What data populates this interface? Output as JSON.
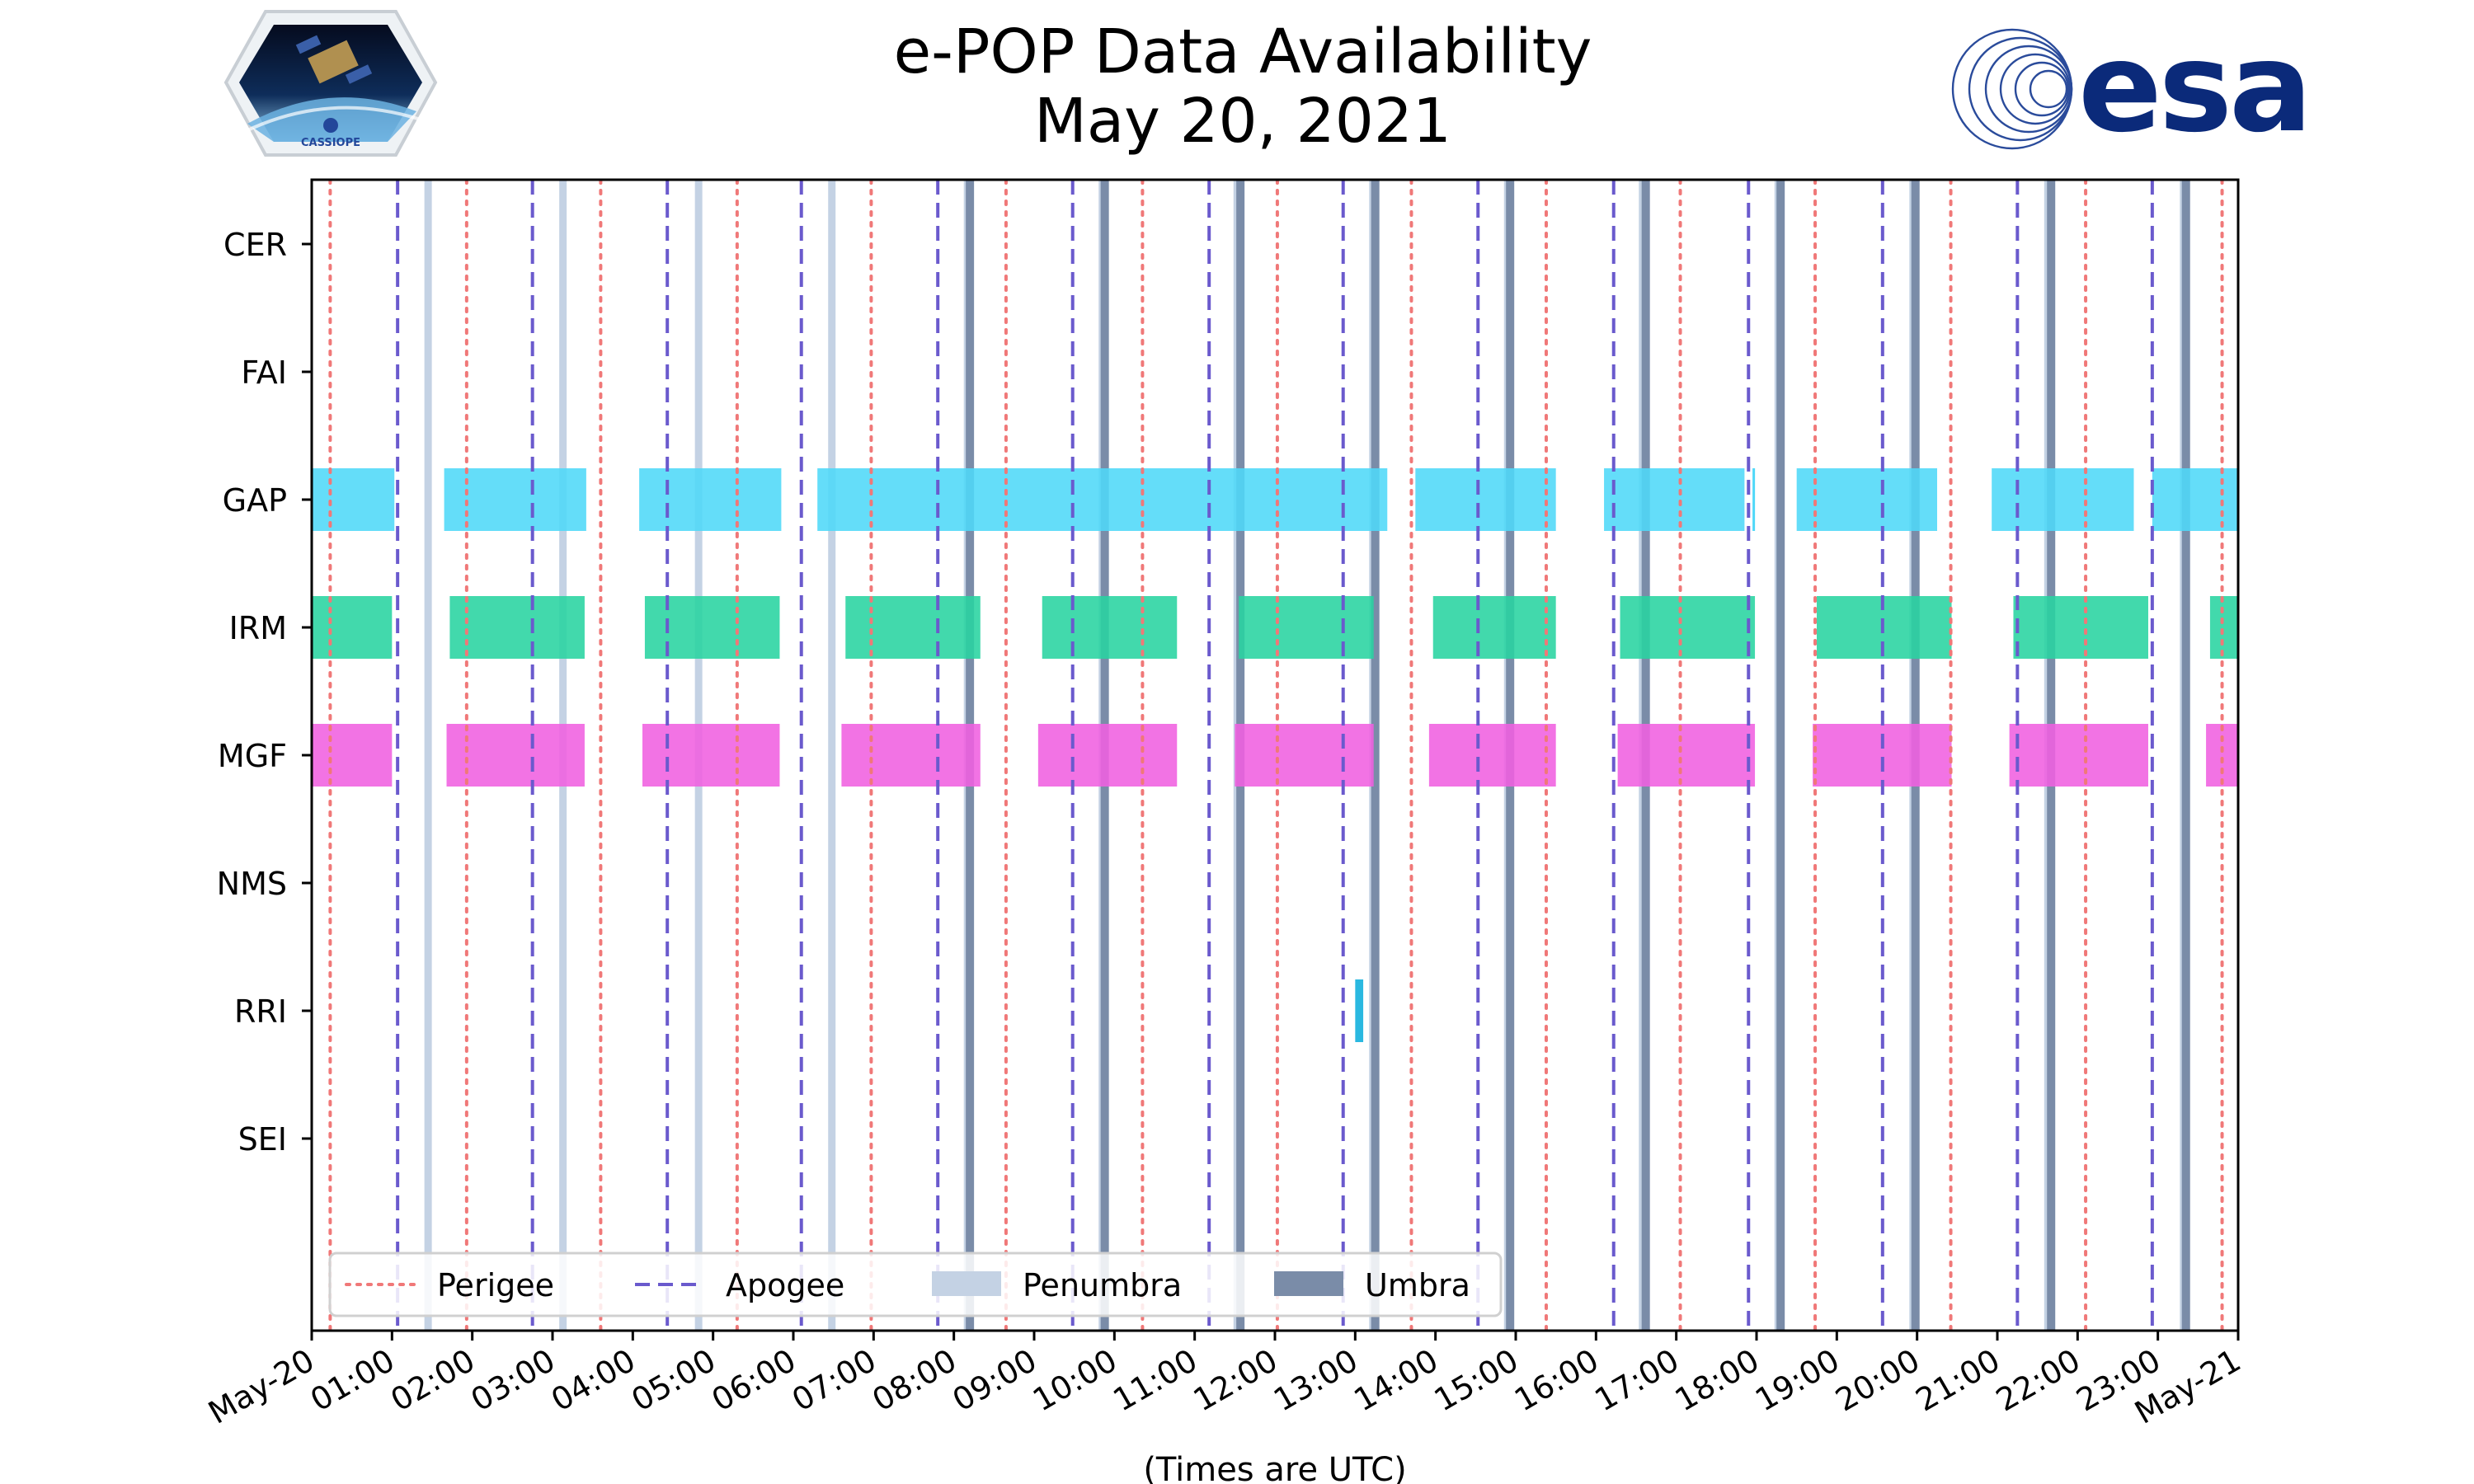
{
  "chart_data": {
    "type": "timeline",
    "title": "e-POP Data Availability",
    "subtitle": "May 20, 2021",
    "xlabel": "(Times are UTC)",
    "ylabel": "",
    "x_range_hours": [
      0,
      24
    ],
    "x_tick_labels": [
      "May-20",
      "01:00",
      "02:00",
      "03:00",
      "04:00",
      "05:00",
      "06:00",
      "07:00",
      "08:00",
      "09:00",
      "10:00",
      "11:00",
      "12:00",
      "13:00",
      "14:00",
      "15:00",
      "16:00",
      "17:00",
      "18:00",
      "19:00",
      "20:00",
      "21:00",
      "22:00",
      "23:00",
      "May-21"
    ],
    "instruments": [
      "CER",
      "FAI",
      "GAP",
      "IRM",
      "MGF",
      "NMS",
      "RRI",
      "SEI"
    ],
    "colors": {
      "GAP": "#4fd8f8",
      "IRM": "#28d4a0",
      "MGF": "#f060e0",
      "RRI": "#2ab8e0",
      "perigee": "#f07878",
      "apogee": "#6a5acd",
      "penumbra": "#c4d2e4",
      "umbra": "#7a8ca8"
    },
    "series": [
      {
        "name": "CER",
        "intervals": []
      },
      {
        "name": "FAI",
        "intervals": []
      },
      {
        "name": "GAP",
        "intervals": [
          [
            0,
            1.03
          ],
          [
            1.65,
            3.42
          ],
          [
            4.08,
            5.85
          ],
          [
            6.3,
            13.4
          ],
          [
            13.75,
            15.5
          ],
          [
            16.1,
            17.85
          ],
          [
            17.95,
            17.97
          ],
          [
            18.5,
            20.25
          ],
          [
            20.93,
            22.7
          ],
          [
            22.93,
            24
          ]
        ]
      },
      {
        "name": "IRM",
        "intervals": [
          [
            0,
            1.0
          ],
          [
            1.72,
            3.4
          ],
          [
            4.15,
            5.83
          ],
          [
            6.65,
            8.33
          ],
          [
            9.1,
            10.78
          ],
          [
            11.55,
            13.23
          ],
          [
            13.97,
            15.5
          ],
          [
            16.3,
            17.98
          ],
          [
            18.75,
            20.43
          ],
          [
            21.2,
            22.88
          ],
          [
            23.65,
            24
          ]
        ]
      },
      {
        "name": "MGF",
        "intervals": [
          [
            0,
            1.0
          ],
          [
            1.68,
            3.4
          ],
          [
            4.12,
            5.83
          ],
          [
            6.6,
            8.33
          ],
          [
            9.05,
            10.78
          ],
          [
            11.5,
            13.23
          ],
          [
            13.92,
            15.5
          ],
          [
            16.27,
            17.98
          ],
          [
            18.7,
            20.43
          ],
          [
            21.15,
            22.88
          ],
          [
            23.6,
            24
          ]
        ]
      },
      {
        "name": "NMS",
        "intervals": []
      },
      {
        "name": "RRI",
        "intervals": [
          [
            13.0,
            13.1
          ]
        ]
      },
      {
        "name": "SEI",
        "intervals": []
      }
    ],
    "perigee_hours": [
      0.23,
      1.93,
      3.6,
      5.3,
      6.97,
      8.65,
      10.35,
      12.03,
      13.7,
      15.38,
      17.05,
      18.73,
      20.42,
      22.1,
      23.8
    ],
    "apogee_hours": [
      1.07,
      2.75,
      4.43,
      6.1,
      7.8,
      9.48,
      11.18,
      12.85,
      14.53,
      16.22,
      17.9,
      19.57,
      21.25,
      22.93
    ],
    "penumbra_hours": [
      1.45,
      3.13,
      4.82,
      6.48,
      8.17,
      9.85,
      11.53,
      13.22,
      14.9,
      16.58,
      18.27,
      19.95,
      21.63,
      23.32
    ],
    "umbra_hours": [
      8.2,
      9.88,
      11.57,
      13.25,
      14.93,
      16.62,
      18.3,
      19.98,
      21.67,
      23.35
    ],
    "legend": {
      "position": "lower-left",
      "items": [
        {
          "label": "Perigee",
          "style": "dotted",
          "color": "#f07878"
        },
        {
          "label": "Apogee",
          "style": "dashed",
          "color": "#6a5acd"
        },
        {
          "label": "Penumbra",
          "style": "patch",
          "color": "#c4d2e4"
        },
        {
          "label": "Umbra",
          "style": "patch",
          "color": "#7a8ca8"
        }
      ]
    }
  },
  "logos": {
    "cassiope_text": "CASSIOPE",
    "esa_text": "esa"
  }
}
